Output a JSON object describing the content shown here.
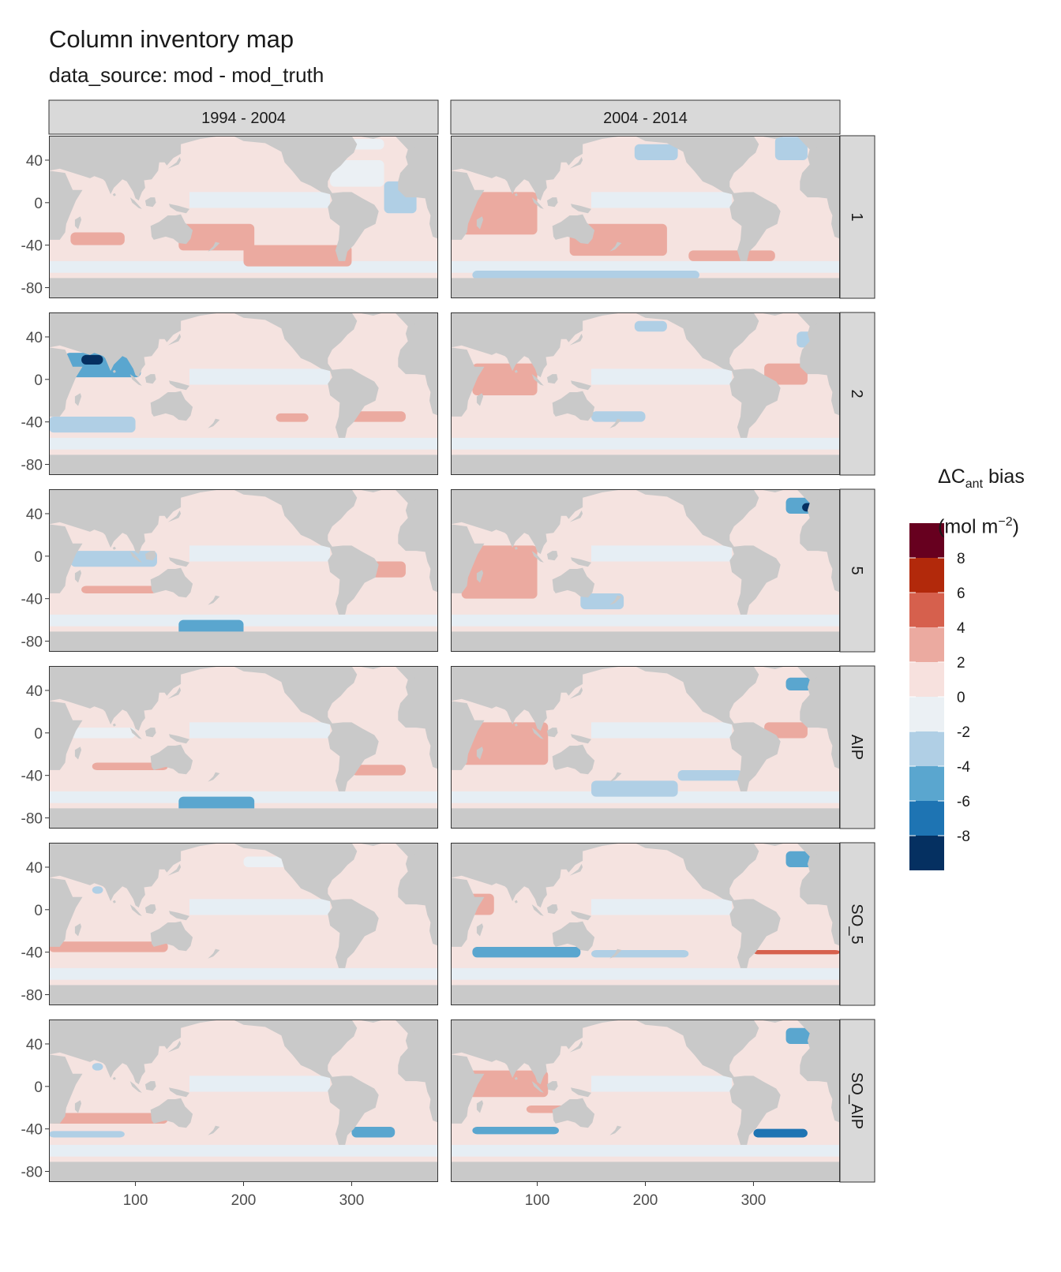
{
  "title": "Column inventory map",
  "subtitle": "data_source: mod - mod_truth",
  "columns": [
    "1994 - 2004",
    "2004 - 2014"
  ],
  "rows": [
    "1",
    "2",
    "5",
    "AIP",
    "SO_5",
    "SO_AIP"
  ],
  "y_ticks": [
    "40",
    "0",
    "-40",
    "-80"
  ],
  "x_ticks": [
    "100",
    "200",
    "300"
  ],
  "legend": {
    "title_main": "ΔC",
    "title_sub": "ant",
    "title_rest": " bias",
    "unit_prefix": "(mol m",
    "unit_sup": "−2",
    "unit_suffix": ")",
    "labels": [
      "8",
      "6",
      "4",
      "2",
      "0",
      "-2",
      "-4",
      "-6",
      "-8"
    ],
    "colors": [
      "#67001f",
      "#b2290b",
      "#d6604d",
      "#ebaaa0",
      "#f7e1de",
      "#ebf0f4",
      "#b0cfe5",
      "#5aa6cf",
      "#1e74b3",
      "#053061"
    ]
  },
  "colors": {
    "land": "#c9c9c9",
    "ocean_base": "#f5e3e0",
    "ocean_blue": "#e6eef4",
    "strip": "#d9d9d9",
    "panel_border": "#333333"
  }
}
